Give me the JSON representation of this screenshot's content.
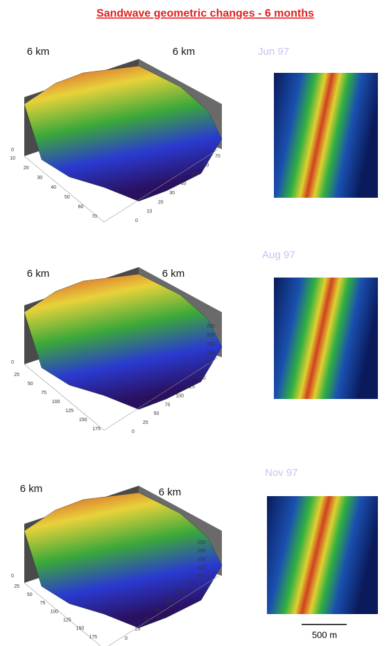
{
  "title": "Sandwave geometric changes - 6 months",
  "panels": [
    {
      "date": "Jun 97",
      "axis_labels": [
        "6 km",
        "6 km"
      ],
      "left_ticks": [
        10,
        20,
        30,
        40,
        50,
        60,
        70
      ],
      "right_ticks": [
        0,
        10,
        20,
        30,
        40,
        50,
        60,
        70
      ],
      "z_ticks": [],
      "base_tick": 0
    },
    {
      "date": "Aug 97",
      "axis_labels": [
        "6 km",
        "6 km"
      ],
      "left_ticks": [
        25,
        50,
        75,
        100,
        125,
        150,
        175
      ],
      "right_ticks": [
        0,
        25,
        50,
        75,
        100,
        125,
        150
      ],
      "z_ticks": [
        250,
        200,
        150,
        100,
        50
      ],
      "base_tick": 0
    },
    {
      "date": "Nov 97",
      "axis_labels": [
        "6 km",
        "6 km"
      ],
      "left_ticks": [
        25,
        50,
        75,
        100,
        125,
        150,
        175
      ],
      "right_ticks": [
        0,
        25,
        50,
        75,
        100,
        125,
        150
      ],
      "z_ticks": [
        250,
        200,
        150,
        100,
        50
      ],
      "base_tick": 0
    }
  ],
  "scale_bar": "500 m"
}
